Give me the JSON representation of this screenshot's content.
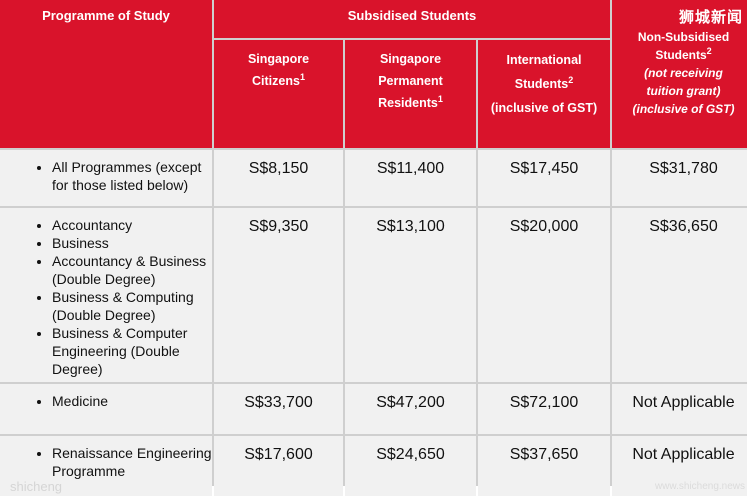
{
  "header": {
    "programme": "Programme of Study",
    "subsidised": "Subsidised Students",
    "citizens": "Singapore",
    "citizens_2": "Citizens",
    "citizens_sup": "1",
    "pr_1": "Singapore",
    "pr_2": "Permanent",
    "pr_3": "Residents",
    "pr_sup": "1",
    "intl_1": "International",
    "intl_2": "Students",
    "intl_sup": "2",
    "intl_3": "(inclusive of GST)",
    "non_1": "Non-Subsidised",
    "non_2": "Students",
    "non_sup": "2",
    "non_3": "(not receiving",
    "non_4": "tuition grant)",
    "non_5": "(inclusive of GST)"
  },
  "rows": [
    {
      "programmes": [
        "All Programmes (except for those listed below)"
      ],
      "citizens": "S$8,150",
      "pr": "S$11,400",
      "intl": "S$17,450",
      "non": "S$31,780"
    },
    {
      "programmes": [
        "Accountancy",
        "Business",
        "Accountancy & Business (Double Degree)",
        "Business & Computing (Double Degree)",
        "Business & Computer Engineering (Double Degree)"
      ],
      "citizens": "S$9,350",
      "pr": "S$13,100",
      "intl": "S$20,000",
      "non": "S$36,650"
    },
    {
      "programmes": [
        "Medicine"
      ],
      "citizens": "S$33,700",
      "pr": "S$47,200",
      "intl": "S$72,100",
      "non": "Not  Applicable"
    },
    {
      "programmes": [
        "Renaissance Engineering Programme"
      ],
      "citizens": "S$17,600",
      "pr": "S$24,650",
      "intl": "S$37,650",
      "non": "Not  Applicable"
    }
  ],
  "watermark": {
    "top_right": "狮城新闻",
    "bottom_left": "shicheng",
    "bottom_right": "www.shicheng.news"
  }
}
